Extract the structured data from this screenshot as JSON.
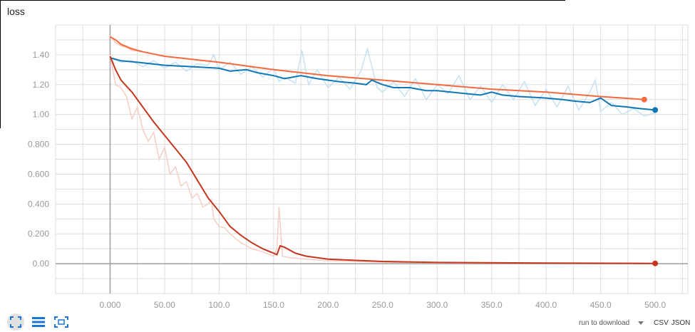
{
  "title": "loss",
  "toolbar": {
    "icons": [
      "fit-domain-icon",
      "toggle-log-scale-icon",
      "expand-chart-icon"
    ]
  },
  "download": {
    "label": "run to download",
    "formats": [
      "CSV",
      "JSON"
    ]
  },
  "colors": {
    "series_a_smooth": "#f4693e",
    "series_a_raw": "#fbc5b1",
    "series_b_smooth": "#0f77b5",
    "series_b_raw": "#c5e1f2",
    "series_c_smooth": "#c5361d",
    "series_c_raw": "#f3cfc6",
    "grid": "#dddddd",
    "axis": "#9e9e9e"
  },
  "chart_data": {
    "type": "line",
    "title": "loss",
    "xlabel": "",
    "ylabel": "",
    "xlim": [
      -50,
      530
    ],
    "ylim": [
      -0.2,
      1.6
    ],
    "x_ticks": [
      "0.000",
      "50.00",
      "100.0",
      "150.0",
      "200.0",
      "250.0",
      "300.0",
      "350.0",
      "400.0",
      "450.0",
      "500.0"
    ],
    "x_tick_values": [
      0,
      50,
      100,
      150,
      200,
      250,
      300,
      350,
      400,
      450,
      500
    ],
    "y_ticks": [
      "0.00",
      "0.200",
      "0.400",
      "0.600",
      "0.800",
      "1.00",
      "1.20",
      "1.40"
    ],
    "y_tick_values": [
      0,
      0.2,
      0.4,
      0.6,
      0.8,
      1.0,
      1.2,
      1.4
    ],
    "grid": true,
    "series": [
      {
        "color_key": "series_a",
        "smoothed": [
          [
            0,
            1.52
          ],
          [
            5,
            1.5
          ],
          [
            10,
            1.47
          ],
          [
            20,
            1.44
          ],
          [
            30,
            1.42
          ],
          [
            50,
            1.39
          ],
          [
            75,
            1.37
          ],
          [
            100,
            1.35
          ],
          [
            150,
            1.3
          ],
          [
            200,
            1.26
          ],
          [
            250,
            1.23
          ],
          [
            300,
            1.2
          ],
          [
            350,
            1.17
          ],
          [
            400,
            1.15
          ],
          [
            450,
            1.12
          ],
          [
            490,
            1.1
          ]
        ],
        "raw": [
          [
            0,
            1.53
          ],
          [
            5,
            1.48
          ],
          [
            10,
            1.46
          ],
          [
            15,
            1.45
          ],
          [
            20,
            1.43
          ],
          [
            30,
            1.42
          ],
          [
            50,
            1.39
          ],
          [
            75,
            1.37
          ],
          [
            100,
            1.35
          ],
          [
            150,
            1.3
          ],
          [
            200,
            1.26
          ],
          [
            250,
            1.23
          ],
          [
            300,
            1.2
          ],
          [
            350,
            1.17
          ],
          [
            400,
            1.15
          ],
          [
            450,
            1.12
          ],
          [
            490,
            1.1
          ]
        ]
      },
      {
        "color_key": "series_b",
        "smoothed": [
          [
            0,
            1.38
          ],
          [
            10,
            1.36
          ],
          [
            25,
            1.35
          ],
          [
            50,
            1.33
          ],
          [
            75,
            1.32
          ],
          [
            100,
            1.31
          ],
          [
            110,
            1.29
          ],
          [
            125,
            1.3
          ],
          [
            135,
            1.28
          ],
          [
            150,
            1.26
          ],
          [
            160,
            1.24
          ],
          [
            175,
            1.26
          ],
          [
            190,
            1.24
          ],
          [
            200,
            1.23
          ],
          [
            210,
            1.22
          ],
          [
            225,
            1.21
          ],
          [
            235,
            1.2
          ],
          [
            240,
            1.23
          ],
          [
            250,
            1.2
          ],
          [
            260,
            1.18
          ],
          [
            275,
            1.18
          ],
          [
            290,
            1.16
          ],
          [
            300,
            1.16
          ],
          [
            325,
            1.14
          ],
          [
            340,
            1.13
          ],
          [
            350,
            1.15
          ],
          [
            360,
            1.13
          ],
          [
            375,
            1.12
          ],
          [
            400,
            1.11
          ],
          [
            415,
            1.1
          ],
          [
            425,
            1.09
          ],
          [
            440,
            1.08
          ],
          [
            450,
            1.11
          ],
          [
            460,
            1.06
          ],
          [
            475,
            1.05
          ],
          [
            485,
            1.04
          ],
          [
            500,
            1.03
          ]
        ],
        "raw": [
          [
            0,
            1.38
          ],
          [
            10,
            1.35
          ],
          [
            20,
            1.36
          ],
          [
            30,
            1.32
          ],
          [
            40,
            1.36
          ],
          [
            50,
            1.31
          ],
          [
            60,
            1.35
          ],
          [
            70,
            1.29
          ],
          [
            80,
            1.34
          ],
          [
            90,
            1.33
          ],
          [
            95,
            1.4
          ],
          [
            100,
            1.3
          ],
          [
            110,
            1.35
          ],
          [
            120,
            1.27
          ],
          [
            130,
            1.32
          ],
          [
            140,
            1.25
          ],
          [
            150,
            1.31
          ],
          [
            155,
            1.22
          ],
          [
            160,
            1.25
          ],
          [
            170,
            1.21
          ],
          [
            176,
            1.43
          ],
          [
            182,
            1.2
          ],
          [
            190,
            1.3
          ],
          [
            200,
            1.18
          ],
          [
            210,
            1.25
          ],
          [
            220,
            1.17
          ],
          [
            230,
            1.29
          ],
          [
            236,
            1.44
          ],
          [
            245,
            1.18
          ],
          [
            250,
            1.15
          ],
          [
            260,
            1.22
          ],
          [
            270,
            1.12
          ],
          [
            280,
            1.24
          ],
          [
            290,
            1.1
          ],
          [
            300,
            1.2
          ],
          [
            310,
            1.14
          ],
          [
            320,
            1.26
          ],
          [
            330,
            1.1
          ],
          [
            340,
            1.19
          ],
          [
            350,
            1.08
          ],
          [
            360,
            1.2
          ],
          [
            370,
            1.1
          ],
          [
            380,
            1.22
          ],
          [
            390,
            1.06
          ],
          [
            400,
            1.17
          ],
          [
            410,
            1.05
          ],
          [
            420,
            1.19
          ],
          [
            430,
            1.03
          ],
          [
            440,
            1.15
          ],
          [
            445,
            1.23
          ],
          [
            450,
            1.02
          ],
          [
            460,
            1.08
          ],
          [
            470,
            1.0
          ],
          [
            480,
            1.04
          ],
          [
            490,
            0.99
          ],
          [
            500,
            1.01
          ]
        ]
      },
      {
        "color_key": "series_c",
        "smoothed": [
          [
            0,
            1.39
          ],
          [
            5,
            1.3
          ],
          [
            10,
            1.23
          ],
          [
            15,
            1.19
          ],
          [
            20,
            1.15
          ],
          [
            30,
            1.05
          ],
          [
            40,
            0.95
          ],
          [
            50,
            0.86
          ],
          [
            60,
            0.77
          ],
          [
            70,
            0.68
          ],
          [
            80,
            0.56
          ],
          [
            90,
            0.44
          ],
          [
            100,
            0.35
          ],
          [
            105,
            0.3
          ],
          [
            110,
            0.25
          ],
          [
            120,
            0.19
          ],
          [
            130,
            0.14
          ],
          [
            140,
            0.1
          ],
          [
            150,
            0.07
          ],
          [
            153,
            0.06
          ],
          [
            156,
            0.12
          ],
          [
            160,
            0.11
          ],
          [
            170,
            0.07
          ],
          [
            180,
            0.05
          ],
          [
            200,
            0.03
          ],
          [
            250,
            0.015
          ],
          [
            300,
            0.008
          ],
          [
            400,
            0.004
          ],
          [
            500,
            0.002
          ]
        ],
        "raw": [
          [
            0,
            1.4
          ],
          [
            5,
            1.2
          ],
          [
            10,
            1.18
          ],
          [
            15,
            1.12
          ],
          [
            20,
            0.97
          ],
          [
            25,
            1.05
          ],
          [
            30,
            0.9
          ],
          [
            35,
            0.82
          ],
          [
            40,
            0.88
          ],
          [
            45,
            0.7
          ],
          [
            50,
            0.78
          ],
          [
            55,
            0.6
          ],
          [
            60,
            0.65
          ],
          [
            65,
            0.52
          ],
          [
            70,
            0.55
          ],
          [
            75,
            0.44
          ],
          [
            80,
            0.47
          ],
          [
            85,
            0.38
          ],
          [
            90,
            0.4
          ],
          [
            93,
            0.43
          ],
          [
            95,
            0.3
          ],
          [
            100,
            0.25
          ],
          [
            105,
            0.24
          ],
          [
            110,
            0.2
          ],
          [
            120,
            0.14
          ],
          [
            130,
            0.1
          ],
          [
            140,
            0.08
          ],
          [
            150,
            0.05
          ],
          [
            153,
            0.1
          ],
          [
            155,
            0.38
          ],
          [
            158,
            0.05
          ],
          [
            165,
            0.04
          ],
          [
            180,
            0.03
          ],
          [
            200,
            0.02
          ],
          [
            250,
            0.01
          ],
          [
            300,
            0.005
          ],
          [
            400,
            0.003
          ],
          [
            500,
            0.001
          ]
        ]
      }
    ]
  }
}
